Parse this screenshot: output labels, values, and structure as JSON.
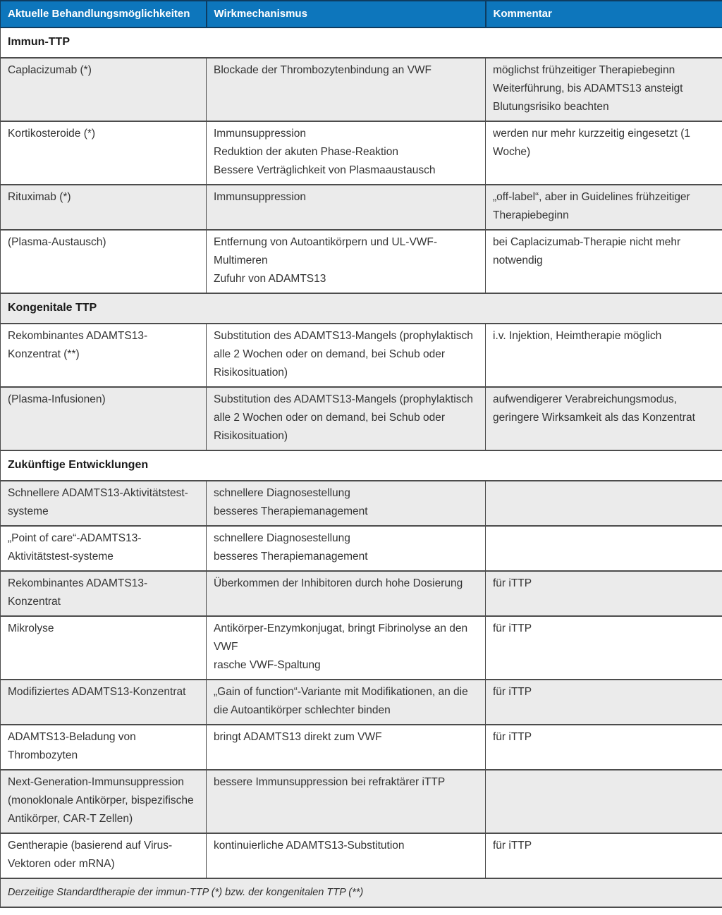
{
  "colors": {
    "header_bg": "#0d76bc",
    "header_text": "#ffffff",
    "header_border": "#0e3c60",
    "row_shade": "#ebebeb",
    "row_plain": "#ffffff",
    "grid": "#4c4c4c",
    "text": "#333333",
    "text_strong": "#1a1a1a"
  },
  "table": {
    "header": {
      "columns": [
        "Aktuelle Behandlungsmöglichkeiten",
        "Wirkmechanismus",
        "Kommentar"
      ]
    },
    "rows": [
      {
        "type": "section",
        "label": "Immun-TTP"
      },
      {
        "type": "data",
        "cells": [
          [
            "Caplacizumab (*)"
          ],
          [
            "Blockade der Thrombozytenbindung an VWF"
          ],
          [
            "möglichst frühzeitiger Therapiebeginn",
            "Weiterführung, bis ADAMTS13 ansteigt",
            "Blutungsrisiko beachten"
          ]
        ]
      },
      {
        "type": "data",
        "cells": [
          [
            "Kortikosteroide (*)"
          ],
          [
            "Immunsuppression",
            "Reduktion der akuten Phase-Reaktion",
            "Bessere Verträglichkeit von Plasmaaustausch"
          ],
          [
            "werden nur mehr kurzzeitig eingesetzt (1 Woche)"
          ]
        ]
      },
      {
        "type": "data",
        "cells": [
          [
            "Rituximab (*)"
          ],
          [
            "Immunsuppression"
          ],
          [
            "„off-label“, aber in Guidelines frühzeitiger Therapiebeginn"
          ]
        ]
      },
      {
        "type": "data",
        "cells": [
          [
            "(Plasma-Austausch)"
          ],
          [
            "Entfernung von Autoantikörpern und UL-VWF-Multimeren",
            "Zufuhr von ADAMTS13"
          ],
          [
            "bei Caplacizumab-Therapie nicht mehr notwendig"
          ]
        ]
      },
      {
        "type": "section",
        "label": "Kongenitale TTP"
      },
      {
        "type": "data",
        "cells": [
          [
            "Rekombinantes ADAMTS13-Konzentrat (**)"
          ],
          [
            "Substitution des ADAMTS13-Mangels (prophylaktisch alle 2 Wochen oder on demand, bei Schub oder Risikosituation)"
          ],
          [
            "i.v. Injektion, Heimtherapie möglich"
          ]
        ]
      },
      {
        "type": "data",
        "cells": [
          [
            "(Plasma-Infusionen)"
          ],
          [
            "Substitution des ADAMTS13-Mangels (prophylaktisch alle 2 Wochen oder on demand, bei Schub oder Risikosituation)"
          ],
          [
            "aufwendigerer Verabreichungsmodus, geringere Wirksamkeit als das Konzentrat"
          ]
        ]
      },
      {
        "type": "section",
        "label": "Zukünftige Entwicklungen"
      },
      {
        "type": "data",
        "cells": [
          [
            "Schnellere ADAMTS13-Aktivitätstest-systeme"
          ],
          [
            "schnellere Diagnosestellung",
            "besseres Therapiemanagement"
          ],
          []
        ]
      },
      {
        "type": "data",
        "cells": [
          [
            "„Point of care“-ADAMTS13-Aktivitätstest-systeme"
          ],
          [
            "schnellere Diagnosestellung",
            "besseres Therapiemanagement"
          ],
          []
        ]
      },
      {
        "type": "data",
        "cells": [
          [
            "Rekombinantes ADAMTS13-Konzentrat"
          ],
          [
            "Überkommen der Inhibitoren durch hohe Dosierung"
          ],
          [
            "für iTTP"
          ]
        ]
      },
      {
        "type": "data",
        "cells": [
          [
            "Mikrolyse"
          ],
          [
            "Antikörper-Enzymkonjugat, bringt Fibrinolyse an den VWF",
            "rasche VWF-Spaltung"
          ],
          [
            "für iTTP"
          ]
        ]
      },
      {
        "type": "data",
        "cells": [
          [
            "Modifiziertes ADAMTS13-Konzentrat"
          ],
          [
            "„Gain of function“-Variante mit Modifikationen, an die die Autoantikörper schlechter binden"
          ],
          [
            "für iTTP"
          ]
        ]
      },
      {
        "type": "data",
        "cells": [
          [
            "ADAMTS13-Beladung von Thrombozyten"
          ],
          [
            "bringt ADAMTS13 direkt zum VWF"
          ],
          [
            "für iTTP"
          ]
        ]
      },
      {
        "type": "data",
        "cells": [
          [
            "Next-Generation-Immunsuppression (monoklonale Antikörper, bispezifische Antikörper, CAR-T Zellen)"
          ],
          [
            "bessere Immunsuppression bei refraktärer iTTP"
          ],
          []
        ]
      },
      {
        "type": "data",
        "cells": [
          [
            "Gentherapie (basierend auf Virus-Vektoren oder mRNA)"
          ],
          [
            "kontinuierliche ADAMTS13-Substitution"
          ],
          [
            "für iTTP"
          ]
        ]
      }
    ],
    "footnote": "Derzeitige Standardtherapie der immun-TTP (*) bzw. der kongenitalen TTP (**)"
  }
}
